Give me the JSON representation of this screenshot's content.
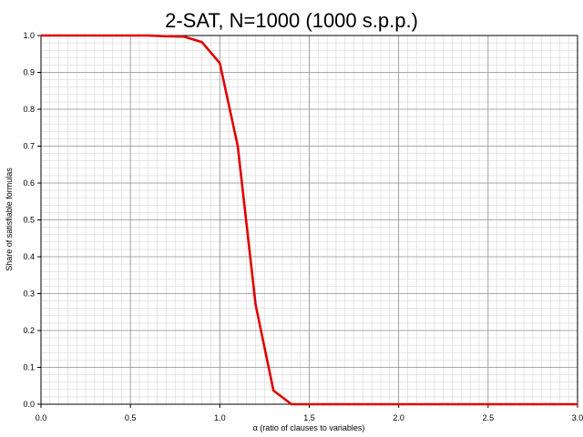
{
  "chart_data": {
    "type": "line",
    "title": "2-SAT, N=1000 (1000 s.p.p.)",
    "xlabel": "α (ratio of clauses to variables)",
    "ylabel": "Share of satisfiable formulas",
    "xlim": [
      0.0,
      3.0
    ],
    "ylim": [
      0.0,
      1.0
    ],
    "x_ticks": [
      "0.0",
      "0.5",
      "1.0",
      "1.5",
      "2.0",
      "2.5",
      "3.0"
    ],
    "y_ticks": [
      "0.0",
      "0.1",
      "0.2",
      "0.3",
      "0.4",
      "0.5",
      "0.6",
      "0.7",
      "0.8",
      "0.9",
      "1.0"
    ],
    "grid": true,
    "line_color": "#e00000",
    "series": [
      {
        "x": [
          0.0,
          0.1,
          0.2,
          0.3,
          0.4,
          0.5,
          0.6,
          0.7,
          0.8,
          0.9,
          1.0,
          1.1,
          1.2,
          1.3,
          1.4,
          1.5,
          1.6,
          1.7,
          1.8,
          1.9,
          2.0,
          2.1,
          2.2,
          2.3,
          2.4,
          2.5,
          2.6,
          2.7,
          2.8,
          2.9,
          3.0
        ],
        "y": [
          1.0,
          1.0,
          1.0,
          1.0,
          1.0,
          1.0,
          1.0,
          0.998,
          0.997,
          0.982,
          0.925,
          0.7,
          0.27,
          0.037,
          0.0,
          0.0,
          0.0,
          0.0,
          0.0,
          0.0,
          0.0,
          0.0,
          0.0,
          0.0,
          0.0,
          0.0,
          0.0,
          0.0,
          0.0,
          0.0,
          0.0
        ]
      }
    ]
  }
}
